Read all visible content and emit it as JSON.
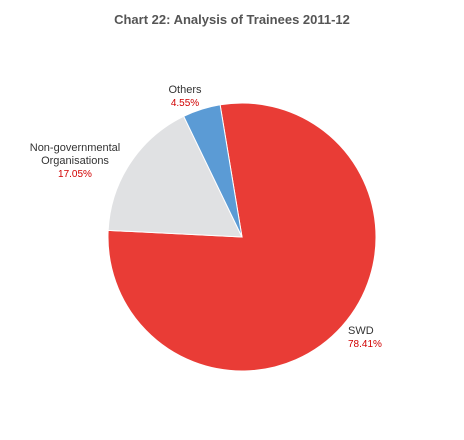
{
  "chart_data": {
    "type": "pie",
    "title": "Chart 22: Analysis of Trainees 2011-12",
    "categories": [
      "SWD",
      "Non-governmental Organisations",
      "Others"
    ],
    "values": [
      78.41,
      17.05,
      4.55
    ],
    "value_labels": [
      "78.41%",
      "17.05%",
      "4.55%"
    ],
    "colors": [
      "#e93c36",
      "#e0e1e3",
      "#5b9bd5"
    ]
  }
}
